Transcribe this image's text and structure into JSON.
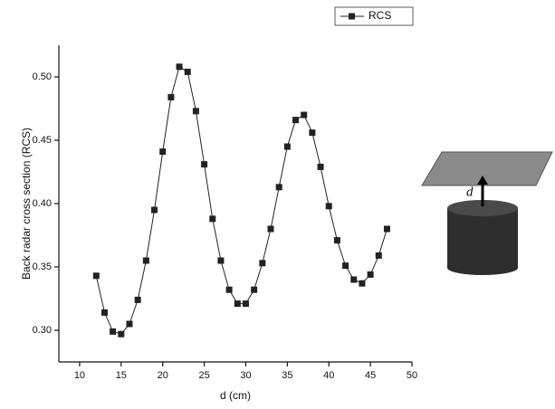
{
  "chart_data": {
    "type": "line",
    "x_label": "d (cm)",
    "y_label": "Back radar cross section (RCS)",
    "x": [
      12,
      13,
      14,
      15,
      16,
      17,
      18,
      19,
      20,
      21,
      22,
      23,
      24,
      25,
      26,
      27,
      28,
      29,
      30,
      31,
      32,
      33,
      34,
      35,
      36,
      37,
      38,
      39,
      40,
      41,
      42,
      43,
      44,
      45,
      46,
      47
    ],
    "series": [
      {
        "name": "RCS",
        "color": "#222222",
        "values": [
          0.343,
          0.314,
          0.299,
          0.297,
          0.305,
          0.324,
          0.355,
          0.395,
          0.441,
          0.484,
          0.508,
          0.504,
          0.473,
          0.431,
          0.388,
          0.355,
          0.332,
          0.321,
          0.321,
          0.332,
          0.353,
          0.38,
          0.413,
          0.445,
          0.466,
          0.47,
          0.456,
          0.429,
          0.398,
          0.371,
          0.351,
          0.34,
          0.337,
          0.344,
          0.359,
          0.38
        ]
      }
    ],
    "xlim": [
      7.5,
      50
    ],
    "xticks": [
      10,
      15,
      20,
      25,
      30,
      35,
      40,
      45,
      50
    ],
    "ylim": [
      0.275,
      0.525
    ],
    "yticks": [
      {
        "value": 0.3,
        "label": "0.30"
      },
      0.35,
      {
        "value": 0.4,
        "label": "0.40"
      },
      0.45,
      {
        "value": 0.5,
        "label": "0.50"
      }
    ],
    "grid": false,
    "legend": "top-right"
  },
  "illustration": {
    "label": "d"
  }
}
